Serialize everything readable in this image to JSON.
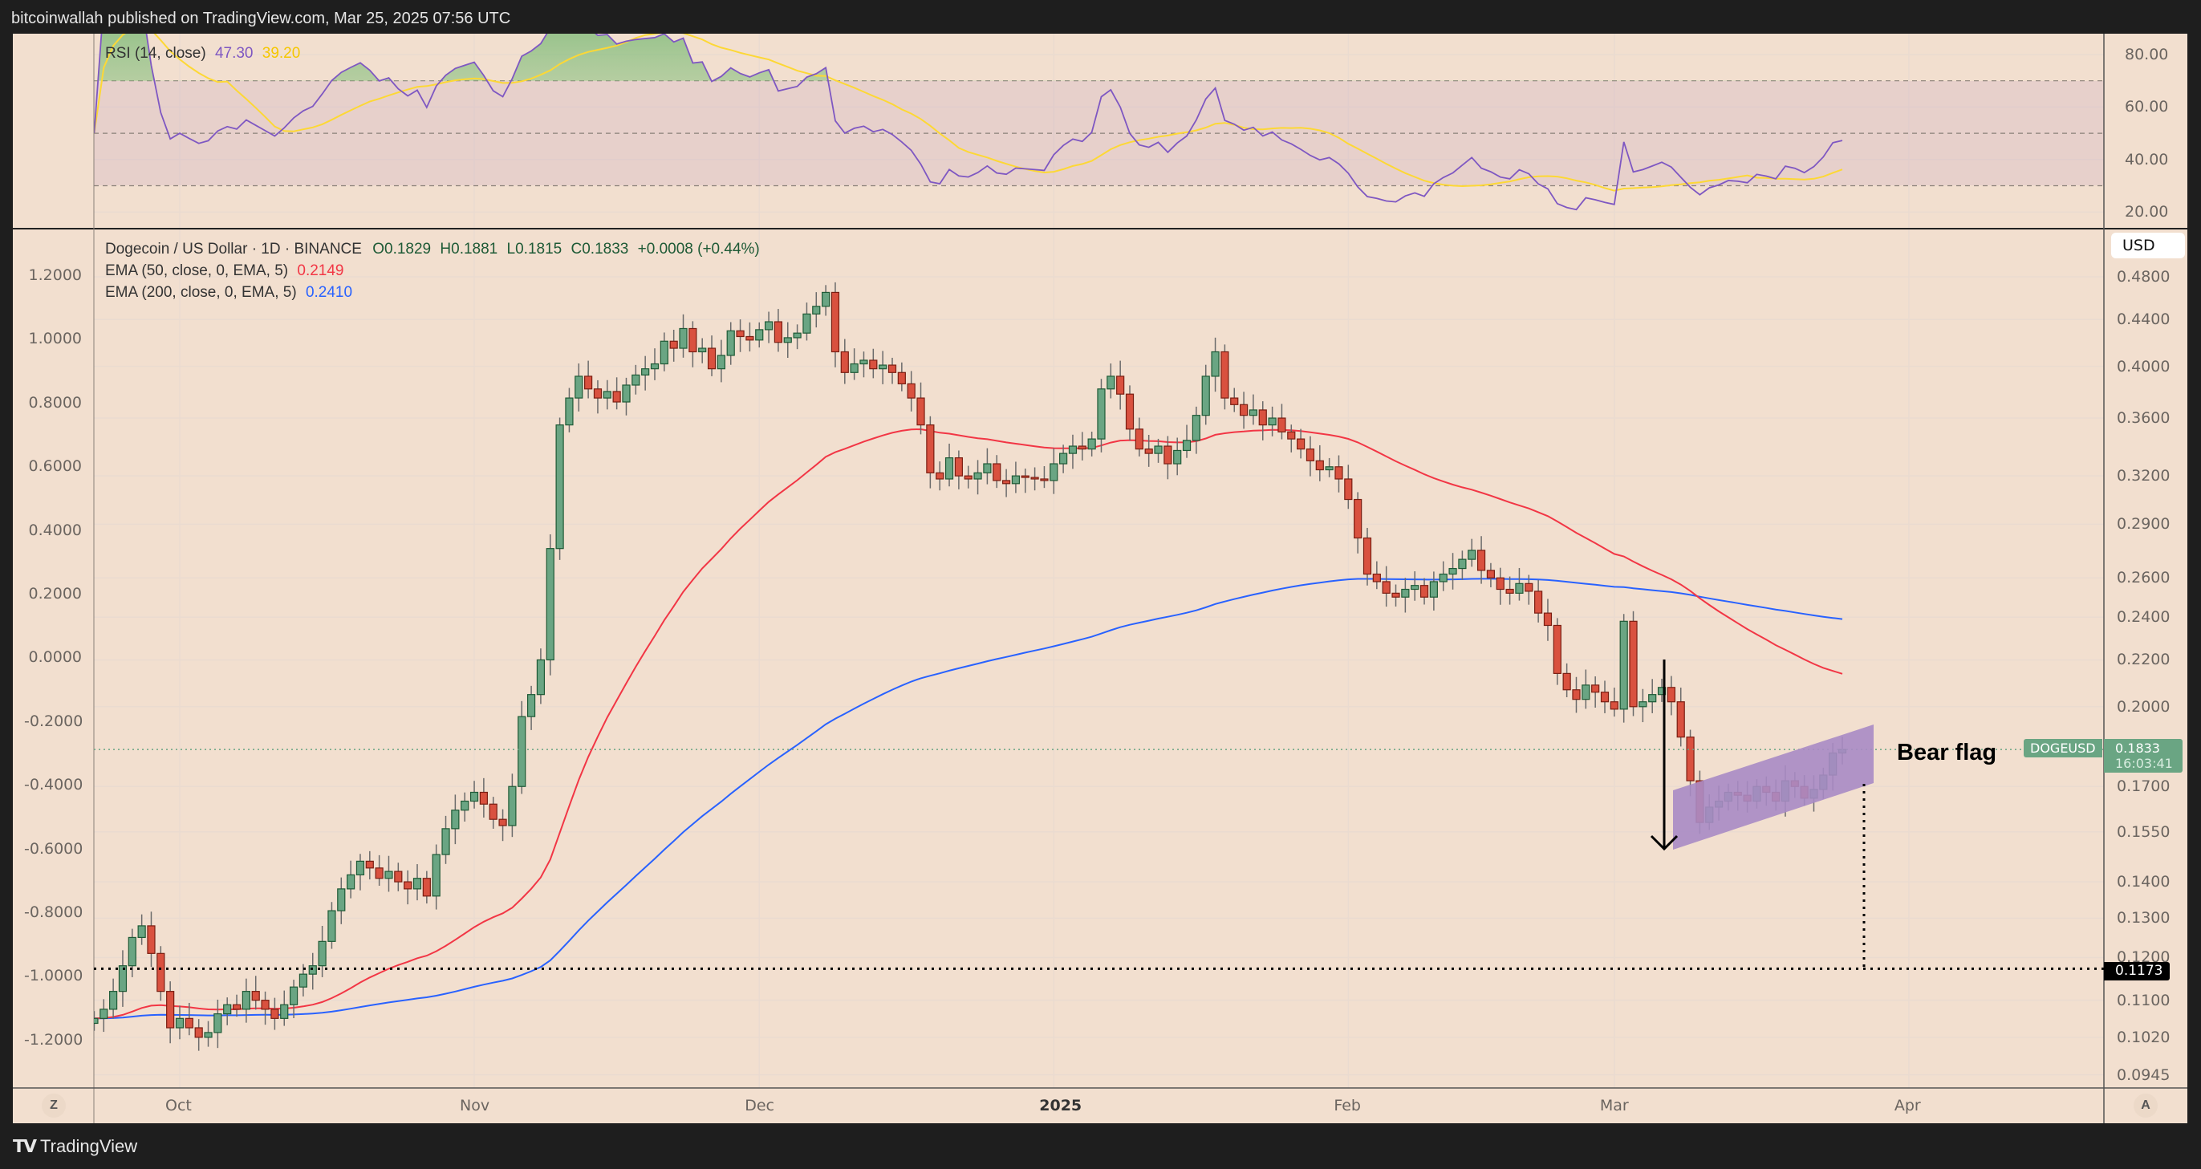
{
  "header": {
    "published": "bitcoinwallah published on TradingView.com, Mar 25, 2025 07:56 UTC"
  },
  "rsi_legend": {
    "name": "RSI (14, close)",
    "value": "47.30",
    "ma_value": "39.20"
  },
  "legend": {
    "symbol": "Dogecoin / US Dollar · 1D · BINANCE",
    "open": "O0.1829",
    "high": "H0.1881",
    "low": "L0.1815",
    "close": "C0.1833",
    "change": "+0.0008 (+0.44%)",
    "ema50": {
      "label": "EMA (50, close, 0, EMA, 5)",
      "value": "0.2149"
    },
    "ema200": {
      "label": "EMA (200, close, 0, EMA, 5)",
      "value": "0.2410"
    }
  },
  "currency": "USD",
  "price_tag": {
    "symbol": "DOGEUSD",
    "price": "0.1833",
    "countdown": "16:03:41"
  },
  "target_tag": "0.1173",
  "annotation": {
    "text": "Bear flag"
  },
  "buttons": {
    "left": "Z",
    "right": "A"
  },
  "footer": {
    "brand": "TradingView",
    "logo": "TV"
  },
  "colors": {
    "up": "#6aa583",
    "down": "#d9513f",
    "ema50": "#f23645",
    "ema200": "#2962ff",
    "rsi": "#7e57c2",
    "rsi_ma": "#fdd835",
    "flag": "#a98bc4",
    "background": "#f2dfcf"
  },
  "chart_data": [
    {
      "type": "candlestick",
      "scale": "log",
      "start_date": "2024-09-22",
      "end_date": "2025-03-25",
      "closes": [
        0.106,
        0.108,
        0.112,
        0.118,
        0.125,
        0.128,
        0.121,
        0.112,
        0.104,
        0.106,
        0.104,
        0.102,
        0.103,
        0.107,
        0.109,
        0.108,
        0.112,
        0.11,
        0.108,
        0.106,
        0.109,
        0.113,
        0.116,
        0.118,
        0.124,
        0.132,
        0.138,
        0.142,
        0.146,
        0.144,
        0.141,
        0.143,
        0.14,
        0.138,
        0.141,
        0.136,
        0.148,
        0.156,
        0.162,
        0.165,
        0.168,
        0.164,
        0.159,
        0.157,
        0.17,
        0.196,
        0.205,
        0.22,
        0.276,
        0.355,
        0.375,
        0.392,
        0.382,
        0.375,
        0.38,
        0.372,
        0.385,
        0.393,
        0.398,
        0.402,
        0.421,
        0.415,
        0.432,
        0.412,
        0.415,
        0.398,
        0.409,
        0.43,
        0.425,
        0.422,
        0.431,
        0.438,
        0.42,
        0.424,
        0.428,
        0.445,
        0.452,
        0.465,
        0.412,
        0.395,
        0.402,
        0.405,
        0.398,
        0.401,
        0.395,
        0.386,
        0.375,
        0.355,
        0.322,
        0.318,
        0.332,
        0.32,
        0.318,
        0.322,
        0.328,
        0.317,
        0.315,
        0.32,
        0.319,
        0.318,
        0.317,
        0.328,
        0.335,
        0.34,
        0.338,
        0.345,
        0.382,
        0.392,
        0.378,
        0.352,
        0.338,
        0.335,
        0.34,
        0.328,
        0.337,
        0.344,
        0.362,
        0.392,
        0.412,
        0.375,
        0.37,
        0.362,
        0.366,
        0.355,
        0.36,
        0.35,
        0.345,
        0.338,
        0.33,
        0.324,
        0.326,
        0.318,
        0.305,
        0.282,
        0.262,
        0.258,
        0.252,
        0.25,
        0.254,
        0.256,
        0.25,
        0.258,
        0.262,
        0.265,
        0.27,
        0.275,
        0.264,
        0.26,
        0.254,
        0.252,
        0.257,
        0.253,
        0.242,
        0.236,
        0.214,
        0.207,
        0.203,
        0.209,
        0.206,
        0.202,
        0.199,
        0.238,
        0.2,
        0.202,
        0.205,
        0.208,
        0.202,
        0.188,
        0.172,
        0.158,
        0.163,
        0.165,
        0.168,
        0.167,
        0.165,
        0.17,
        0.168,
        0.165,
        0.172,
        0.17,
        0.166,
        0.169,
        0.174,
        0.182,
        0.1833
      ],
      "right_axis_ticks": [
        "0.4800",
        "0.4400",
        "0.4000",
        "0.3600",
        "0.3200",
        "0.2900",
        "0.2600",
        "0.2400",
        "0.2200",
        "0.2000",
        "0.1700",
        "0.1550",
        "0.1400",
        "0.1300",
        "0.1200",
        "0.1100",
        "0.1020",
        "0.0945"
      ],
      "left_axis_ticks": [
        "1.2000",
        "1.0000",
        "0.8000",
        "0.6000",
        "0.4000",
        "0.2000",
        "0.0000",
        "-0.2000",
        "-0.4000",
        "-0.6000",
        "-0.8000",
        "-1.0000",
        "-1.2000"
      ],
      "x_ticks": [
        {
          "label": "Oct",
          "date": "2024-10-01"
        },
        {
          "label": "Nov",
          "date": "2024-11-01"
        },
        {
          "label": "Dec",
          "date": "2024-12-01"
        },
        {
          "label": "2025",
          "date": "2025-01-01"
        },
        {
          "label": "Feb",
          "date": "2025-02-01"
        },
        {
          "label": "Mar",
          "date": "2025-03-01"
        },
        {
          "label": "Apr",
          "date": "2025-04-01"
        }
      ],
      "horizontal_levels": [
        0.1833,
        0.1173
      ]
    },
    {
      "type": "line",
      "panel": "RSI",
      "ylim": [
        20,
        80
      ],
      "y_ticks": [
        "80.00",
        "60.00",
        "40.00",
        "20.00"
      ],
      "bands": [
        70,
        50,
        30
      ]
    }
  ]
}
